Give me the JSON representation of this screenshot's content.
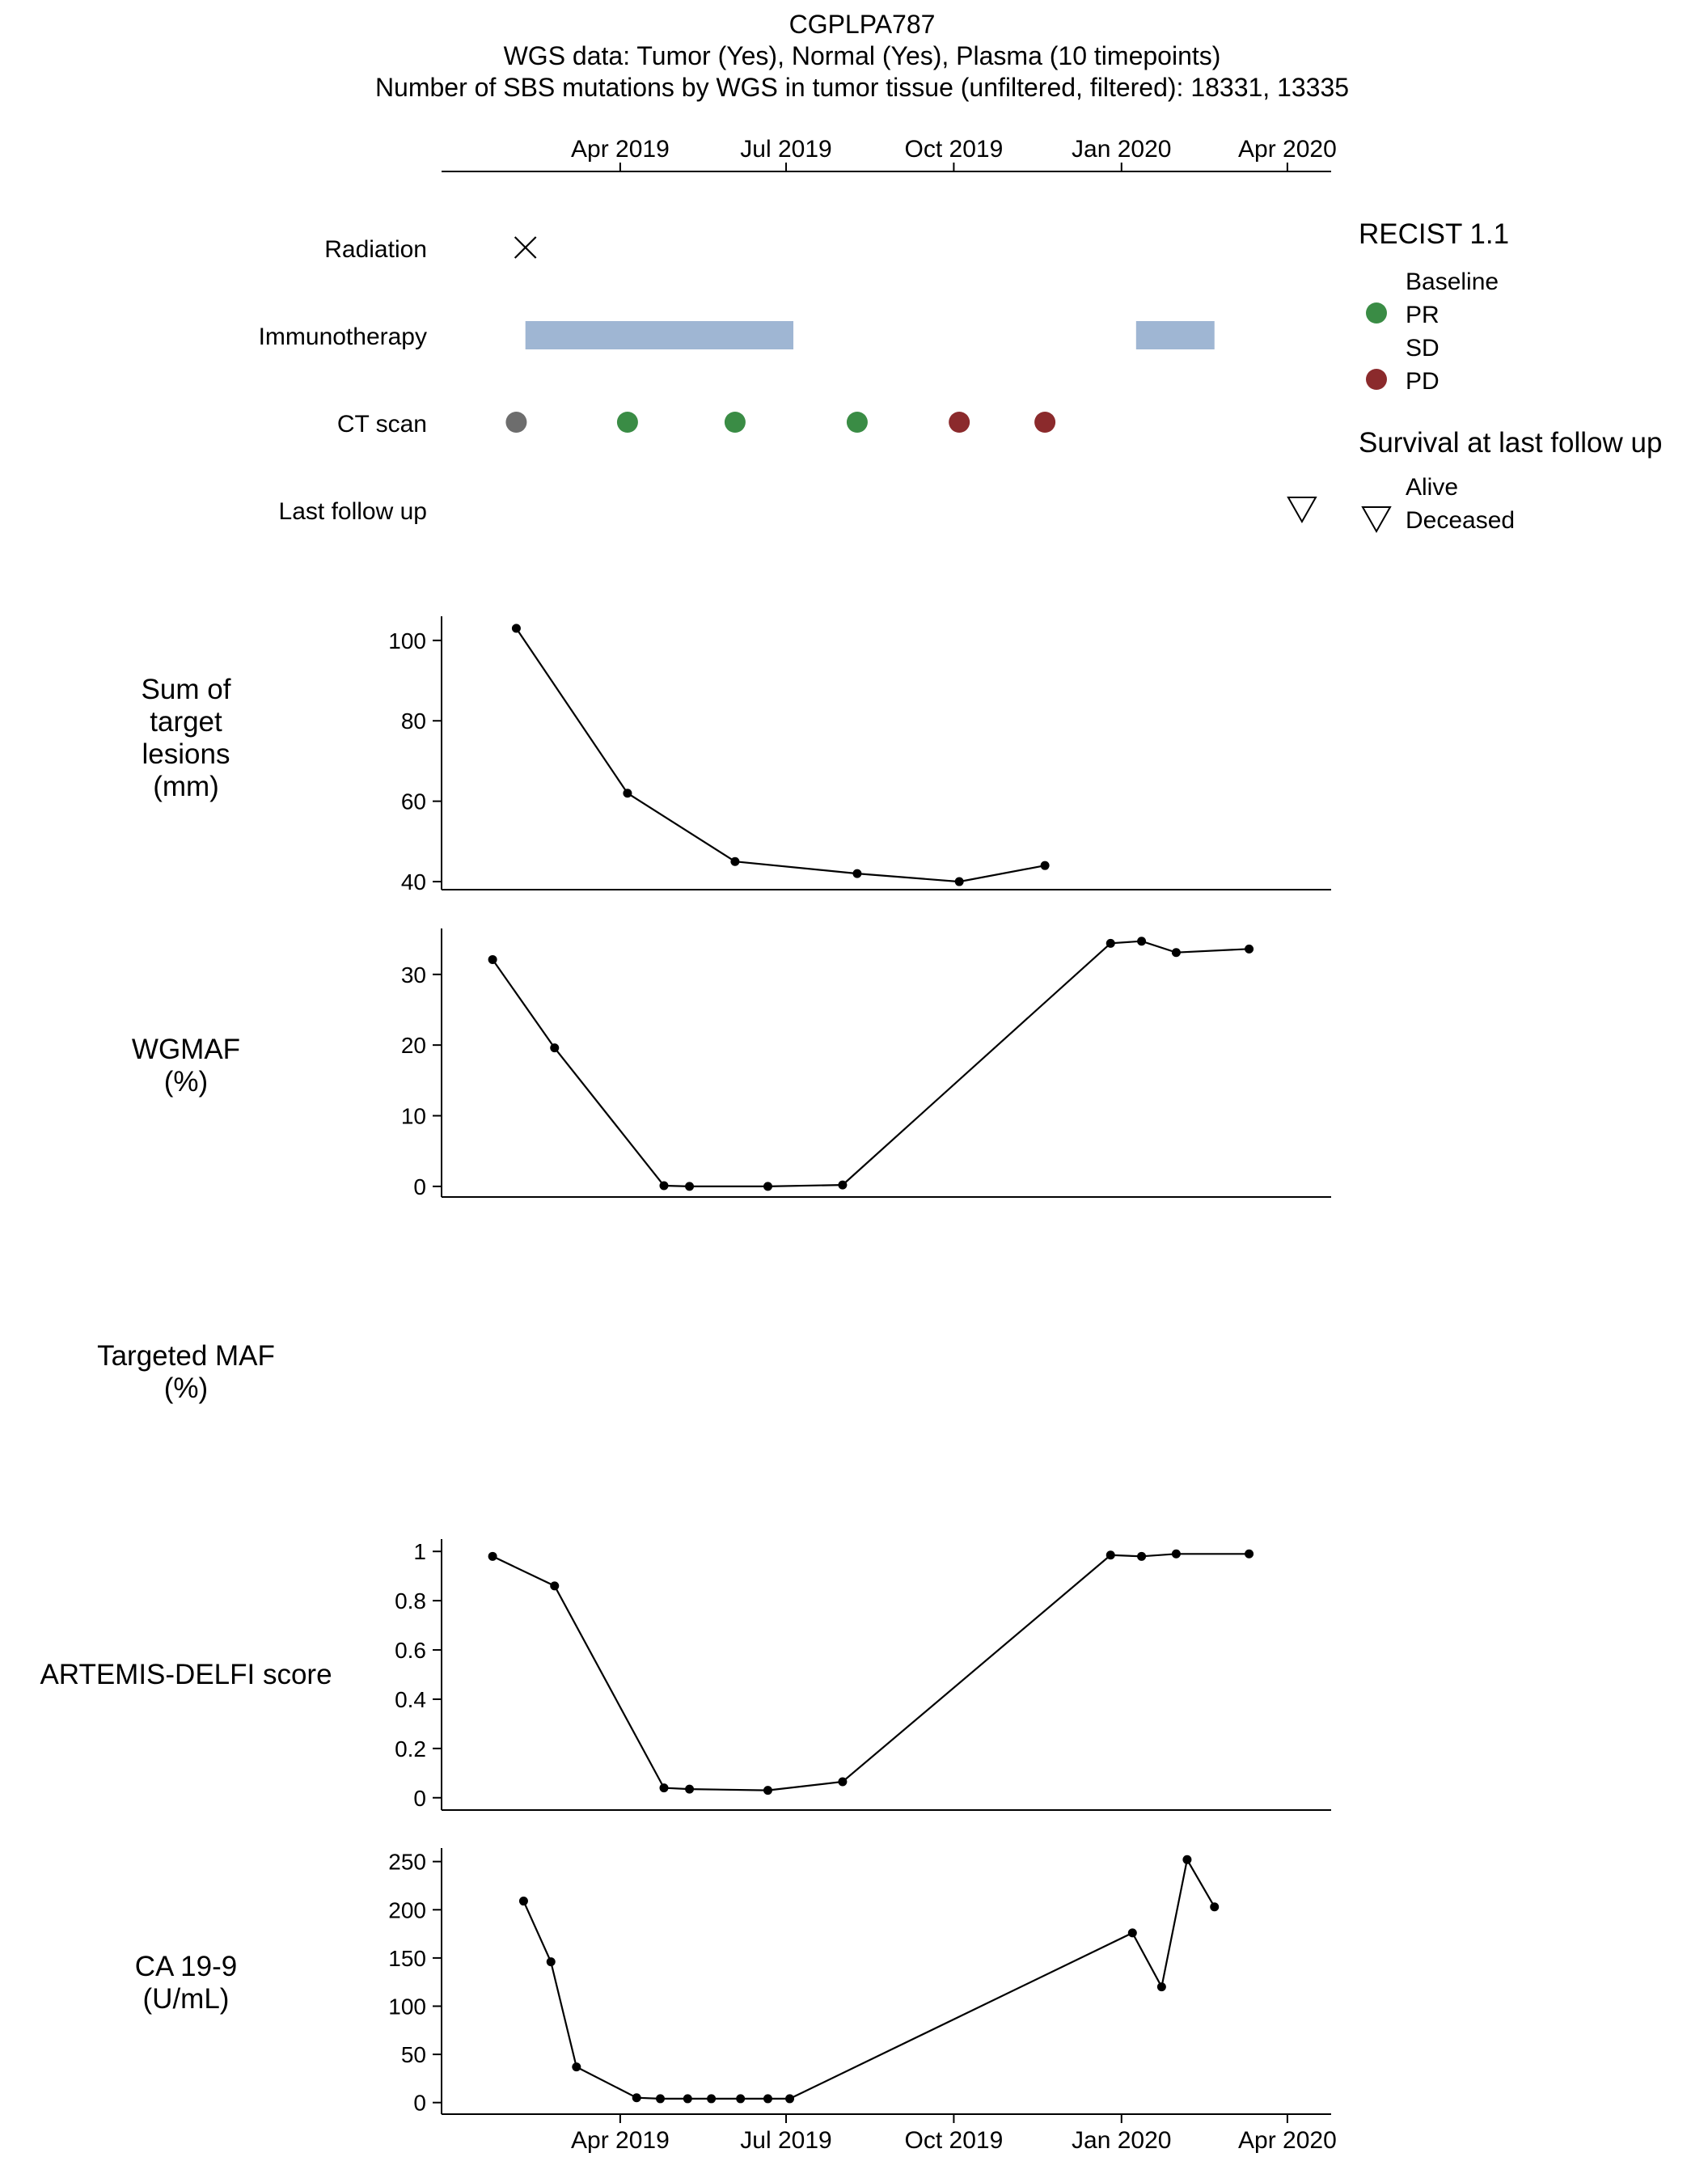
{
  "title": {
    "line1": "CGPLPA787",
    "line2": "WGS data: Tumor (Yes), Normal (Yes), Plasma (10 timepoints)",
    "line3": "Number of SBS mutations by WGS in tumor tissue (unfiltered, filtered): 18331, 13335"
  },
  "time_axis": {
    "ticks": [
      {
        "date": "2019-04-01",
        "label": "Apr 2019"
      },
      {
        "date": "2019-07-01",
        "label": "Jul 2019"
      },
      {
        "date": "2019-10-01",
        "label": "Oct 2019"
      },
      {
        "date": "2020-01-01",
        "label": "Jan 2020"
      },
      {
        "date": "2020-04-01",
        "label": "Apr 2020"
      }
    ],
    "range": [
      "2018-12-24",
      "2020-04-25"
    ]
  },
  "timeline": {
    "rows": [
      {
        "id": "radiation",
        "label": "Radiation"
      },
      {
        "id": "immunotherapy",
        "label": "Immunotherapy"
      },
      {
        "id": "ct",
        "label": "CT scan"
      },
      {
        "id": "followup",
        "label": "Last follow up"
      }
    ],
    "radiation": [
      {
        "date": "2019-02-08",
        "marker": "cross"
      }
    ],
    "immunotherapy": [
      {
        "start": "2019-02-08",
        "end": "2019-07-05"
      },
      {
        "start": "2020-01-09",
        "end": "2020-02-21"
      }
    ],
    "ct_scans": [
      {
        "date": "2019-02-03",
        "status": "Baseline"
      },
      {
        "date": "2019-04-05",
        "status": "PR"
      },
      {
        "date": "2019-06-03",
        "status": "PR"
      },
      {
        "date": "2019-08-09",
        "status": "PR"
      },
      {
        "date": "2019-10-04",
        "status": "PD"
      },
      {
        "date": "2019-11-20",
        "status": "PD"
      }
    ],
    "last_follow_up": {
      "date": "2020-04-09",
      "status": "Deceased"
    }
  },
  "legend": {
    "recist": {
      "title": "RECIST 1.1",
      "items": [
        {
          "label": "Baseline",
          "color": "#ffffff",
          "drawn": false
        },
        {
          "label": "PR",
          "color": "#3a8c45",
          "drawn": true
        },
        {
          "label": "SD",
          "color": "#ffffff",
          "drawn": false
        },
        {
          "label": "PD",
          "color": "#8b2a2c",
          "drawn": true
        }
      ]
    },
    "survival": {
      "title": "Survival at last follow up",
      "items": [
        {
          "label": "Alive",
          "shape": "none"
        },
        {
          "label": "Deceased",
          "shape": "triangle-down"
        }
      ]
    }
  },
  "colors": {
    "baseline": "#6d6d6d",
    "pr": "#3a8c45",
    "pd": "#8b2a2c",
    "immunotherapy": "#9fb6d3",
    "line": "#000000"
  },
  "chart_data": [
    {
      "id": "lesions",
      "type": "line",
      "label": [
        "Sum of",
        "target",
        "lesions",
        "(mm)"
      ],
      "yticks": [
        40,
        60,
        80,
        100
      ],
      "ylim": [
        38,
        106
      ],
      "points": [
        {
          "x": "2019-02-03",
          "y": 103
        },
        {
          "x": "2019-04-05",
          "y": 62
        },
        {
          "x": "2019-06-03",
          "y": 45
        },
        {
          "x": "2019-08-09",
          "y": 42
        },
        {
          "x": "2019-10-04",
          "y": 40
        },
        {
          "x": "2019-11-20",
          "y": 44
        }
      ]
    },
    {
      "id": "wgmaf",
      "type": "line",
      "label": [
        "WGMAF",
        "(%)"
      ],
      "yticks": [
        0,
        10,
        20,
        30
      ],
      "ylim": [
        -1.5,
        36.5
      ],
      "points": [
        {
          "x": "2019-01-21",
          "y": 32.1
        },
        {
          "x": "2019-02-24",
          "y": 19.6
        },
        {
          "x": "2019-04-25",
          "y": 0.1
        },
        {
          "x": "2019-05-09",
          "y": 0.0
        },
        {
          "x": "2019-06-21",
          "y": 0.0
        },
        {
          "x": "2019-08-01",
          "y": 0.2
        },
        {
          "x": "2019-12-26",
          "y": 34.4
        },
        {
          "x": "2020-01-12",
          "y": 34.7
        },
        {
          "x": "2020-01-31",
          "y": 33.1
        },
        {
          "x": "2020-03-11",
          "y": 33.6
        }
      ]
    },
    {
      "id": "targeted",
      "type": "line",
      "label": [
        "Targeted MAF",
        "(%)"
      ],
      "yticks": [],
      "points": []
    },
    {
      "id": "artemis",
      "type": "line",
      "label": [
        "ARTEMIS-DELFI score"
      ],
      "yticks": [
        0,
        0.2,
        0.4,
        0.6,
        0.8,
        1
      ],
      "yticklabels": [
        "0",
        "0.2",
        "0.4",
        "0.6",
        "0.8",
        "1"
      ],
      "ylim": [
        -0.05,
        1.05
      ],
      "points": [
        {
          "x": "2019-01-21",
          "y": 0.98
        },
        {
          "x": "2019-02-24",
          "y": 0.86
        },
        {
          "x": "2019-04-25",
          "y": 0.04
        },
        {
          "x": "2019-05-09",
          "y": 0.035
        },
        {
          "x": "2019-06-21",
          "y": 0.03
        },
        {
          "x": "2019-08-01",
          "y": 0.065
        },
        {
          "x": "2019-12-26",
          "y": 0.985
        },
        {
          "x": "2020-01-12",
          "y": 0.98
        },
        {
          "x": "2020-01-31",
          "y": 0.99
        },
        {
          "x": "2020-03-11",
          "y": 0.99
        }
      ]
    },
    {
      "id": "ca199",
      "type": "line",
      "label": [
        "CA 19-9",
        "(U/mL)"
      ],
      "yticks": [
        0,
        50,
        100,
        150,
        200,
        250
      ],
      "ylim": [
        -12,
        264
      ],
      "points": [
        {
          "x": "2019-02-07",
          "y": 209
        },
        {
          "x": "2019-02-22",
          "y": 146
        },
        {
          "x": "2019-03-08",
          "y": 37
        },
        {
          "x": "2019-04-10",
          "y": 5
        },
        {
          "x": "2019-04-23",
          "y": 4
        },
        {
          "x": "2019-05-08",
          "y": 4
        },
        {
          "x": "2019-05-21",
          "y": 4
        },
        {
          "x": "2019-06-06",
          "y": 4
        },
        {
          "x": "2019-06-21",
          "y": 4
        },
        {
          "x": "2019-07-03",
          "y": 4
        },
        {
          "x": "2020-01-07",
          "y": 176
        },
        {
          "x": "2020-01-23",
          "y": 120
        },
        {
          "x": "2020-02-06",
          "y": 252
        },
        {
          "x": "2020-02-21",
          "y": 203
        }
      ]
    }
  ]
}
